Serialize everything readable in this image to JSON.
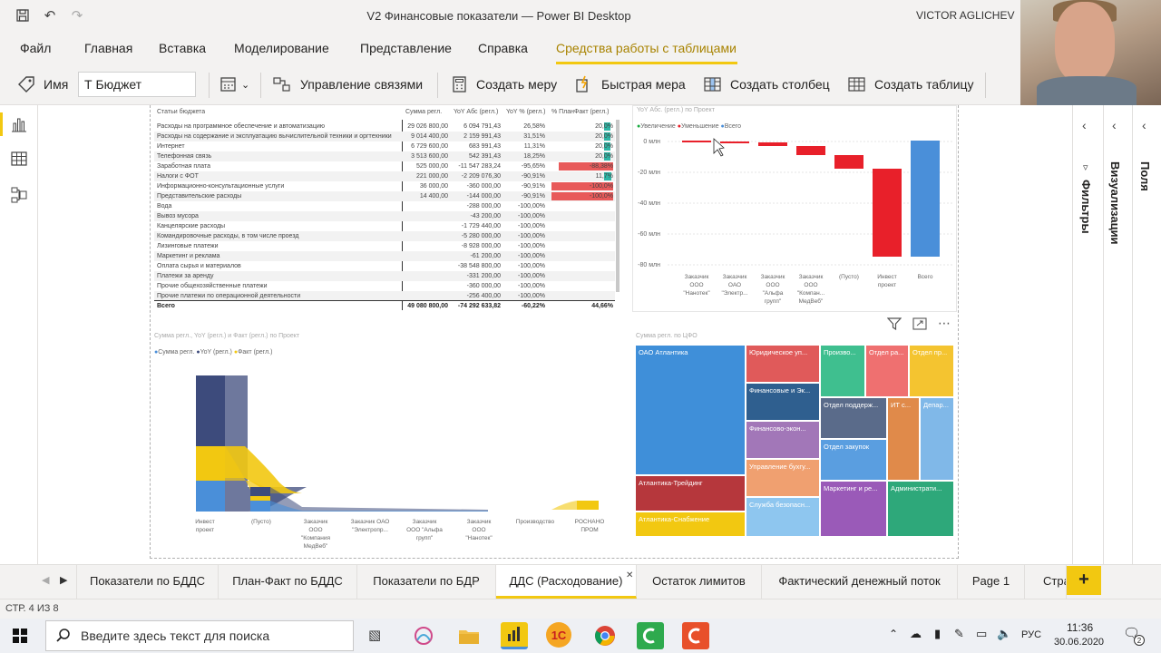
{
  "window": {
    "title": "V2 Финансовые показатели — Power BI Desktop",
    "user": "VICTOR AGLICHEV"
  },
  "menu": [
    "Файл",
    "Главная",
    "Вставка",
    "Моделирование",
    "Представление",
    "Справка",
    "Средства работы с таблицами"
  ],
  "ribbon": {
    "name_label": "Имя",
    "name_value": "Т Бюджет",
    "manage_relations": "Управление связями",
    "new_measure": "Создать меру",
    "quick_measure": "Быстрая мера",
    "new_column": "Создать столбец",
    "new_table": "Создать таблицу"
  },
  "table": {
    "headers": [
      "Статьи бюджета",
      "Сумма регл.",
      "YoY Абс (регл.)",
      "YoY % (регл.)",
      "% ПланФакт (регл.)"
    ],
    "rows": [
      [
        "Расходы на программное обеспечение и автоматизацию",
        "29 026 800,00",
        "6 094 791,43",
        "26,58%",
        "20,0%"
      ],
      [
        "Расходы на содержание и эксплуатацию вычислительной техники и оргтехники",
        "9 014 400,00",
        "2 159 991,43",
        "31,51%",
        "20,0%"
      ],
      [
        "Интернет",
        "6 729 600,00",
        "683 991,43",
        "11,31%",
        "20,0%"
      ],
      [
        "Телефонная связь",
        "3 513 600,00",
        "542 391,43",
        "18,25%",
        "20,0%"
      ],
      [
        "Заработная плата",
        "525 000,00",
        "-11 547 283,24",
        "-95,65%",
        "-88,38%"
      ],
      [
        "Налоги с ФОТ",
        "221 000,00",
        "-2 209 076,30",
        "-90,91%",
        "11,7%"
      ],
      [
        "Информационно-консультационные услуги",
        "36 000,00",
        "-360 000,00",
        "-90,91%",
        "-100,0%"
      ],
      [
        "Представительские расходы",
        "14 400,00",
        "-144 000,00",
        "-90,91%",
        "-100,0%"
      ],
      [
        "Вода",
        "",
        "-288 000,00",
        "-100,00%",
        ""
      ],
      [
        "Вывоз мусора",
        "",
        "-43 200,00",
        "-100,00%",
        ""
      ],
      [
        "Канцелярские расходы",
        "",
        "-1 729 440,00",
        "-100,00%",
        ""
      ],
      [
        "Командировочные расходы, в том числе проезд",
        "",
        "-5 280 000,00",
        "-100,00%",
        ""
      ],
      [
        "Лизинговые платежи",
        "",
        "-8 928 000,00",
        "-100,00%",
        ""
      ],
      [
        "Маркетинг и реклама",
        "",
        "-61 200,00",
        "-100,00%",
        ""
      ],
      [
        "Оплата сырья и материалов",
        "",
        "-38 548 800,00",
        "-100,00%",
        ""
      ],
      [
        "Платежи за аренду",
        "",
        "-331 200,00",
        "-100,00%",
        ""
      ],
      [
        "Прочие общехозяйственные платежи",
        "",
        "-360 000,00",
        "-100,00%",
        ""
      ],
      [
        "Прочие платежи по операционной деятельности",
        "",
        "-256 400,00",
        "-100,00%",
        ""
      ]
    ],
    "total": [
      "Всего",
      "49 080 800,00",
      "-74 292 633,82",
      "-60,22%",
      "44,66%"
    ],
    "bar_fraction": [
      0.1,
      0.1,
      0.1,
      0.1,
      0.88,
      0.12,
      1.0,
      1.0
    ]
  },
  "waterfall": {
    "title": "YoY Абс. (регл.) по Проект",
    "legend": [
      "Увеличение",
      "Уменьшение",
      "Всего"
    ],
    "colors": {
      "increase": "#1aab40",
      "decrease": "#e8202a",
      "total": "#4a8fd9"
    },
    "yticks": [
      "0 млн",
      "-20 млн",
      "-40 млн",
      "-60 млн",
      "-80 млн"
    ],
    "categories": [
      "Заказчик ООО \"Нанотек\"",
      "Заказчик ОАО \"Электр...",
      "Заказчик ООО \"Альфа групп\"",
      "Заказчик ООО \"Компан... МедВеб\"",
      "(Пусто)",
      "Инвест проект",
      "Всего"
    ]
  },
  "ribbon_chart": {
    "title": "Сумма регл., YoY (регл.) и Факт (регл.) по Проект",
    "legend": [
      "Сумма регл.",
      "YoY (регл.)",
      "Факт (регл.)"
    ],
    "colors": [
      "#4a8fd9",
      "#3d4b7c",
      "#f2c811"
    ],
    "categories": [
      "Инвест проект",
      "(Пусто)",
      "Заказчик ООО \"Компания МедВеб\"",
      "Заказчик ОАО \"Электропр...",
      "Заказчик ООО \"Альфа групп\"",
      "Заказчик ООО \"Нанотек\"",
      "Производство",
      "РОСНАНО ПРОМ"
    ]
  },
  "treemap": {
    "title": "Сумма регл. по ЦФО",
    "cells": [
      {
        "label": "ОАО Атлантика",
        "color": "#3f8fd9"
      },
      {
        "label": "Атлантика-Трейдинг",
        "color": "#b6373c"
      },
      {
        "label": "Атлантика-Снабжение",
        "color": "#f2c811"
      },
      {
        "label": "Юридическое уп...",
        "color": "#e05a5a"
      },
      {
        "label": "Финансовые и Эк...",
        "color": "#2f5f8f"
      },
      {
        "label": "Финансово-экон...",
        "color": "#a277b8"
      },
      {
        "label": "Управление бухгу...",
        "color": "#f0a070"
      },
      {
        "label": "Служба безопасн...",
        "color": "#8ec6ef"
      },
      {
        "label": "Произво...",
        "color": "#3fbf8f"
      },
      {
        "label": "Отдел ра...",
        "color": "#ef7070"
      },
      {
        "label": "Отдел пр...",
        "color": "#f4c430"
      },
      {
        "label": "Отдел поддерж...",
        "color": "#5a6b8a"
      },
      {
        "label": "ИТ с...",
        "color": "#e08a4a"
      },
      {
        "label": "Депар...",
        "color": "#80b8e8"
      },
      {
        "label": "Отдел закупок",
        "color": "#5a9ee0"
      },
      {
        "label": "Маркетинг и ре...",
        "color": "#9a5ab8"
      },
      {
        "label": "Администрати...",
        "color": "#2ea87a"
      }
    ]
  },
  "panels": {
    "filters": "Фильтры",
    "visualizations": "Визуализации",
    "fields": "Поля"
  },
  "tabs": [
    "Показатели по БДДС",
    "План-Факт по БДДС",
    "Показатели по БДР",
    "ДДС (Расходование)",
    "Остаток лимитов",
    "Фактический денежный поток",
    "Page 1",
    "Стра"
  ],
  "status": "СТР. 4 ИЗ 8",
  "taskbar": {
    "search_placeholder": "Введите здесь текст для поиска",
    "lang": "РУС",
    "time": "11:36",
    "date": "30.06.2020",
    "notifications": "2"
  }
}
